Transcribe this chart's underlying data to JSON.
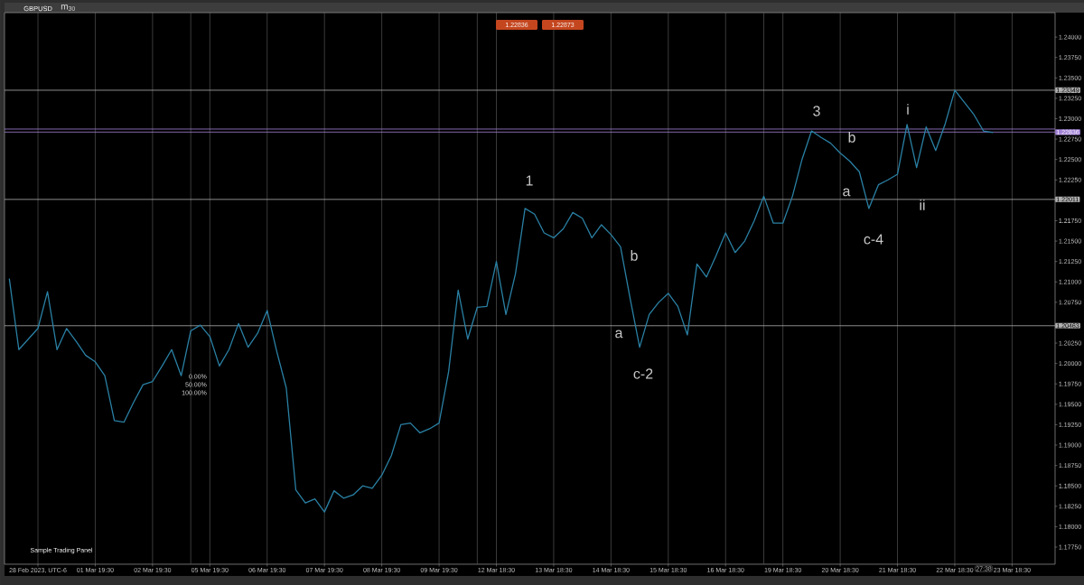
{
  "chart_data": {
    "type": "line",
    "title": "GBPUSD",
    "subtitle": "m$_{30}$",
    "color": "#2a80a4",
    "grid": "x",
    "categories": [
      null,
      null,
      null,
      "28 Feb 2023, UTC-6",
      null,
      null,
      null,
      null,
      null,
      "01 Mar 19:30",
      null,
      null,
      null,
      null,
      null,
      "02 Mar 19:30",
      null,
      null,
      null,
      null,
      null,
      "05 Mar 19:30",
      null,
      null,
      null,
      null,
      null,
      "06 Mar 19:30",
      null,
      null,
      null,
      null,
      null,
      "07 Mar 19:30",
      null,
      null,
      null,
      null,
      null,
      "08 Mar 19:30",
      null,
      null,
      null,
      null,
      null,
      "09 Mar 19:30",
      null,
      null,
      null,
      null,
      null,
      "12 Mar 18:30",
      null,
      null,
      null,
      null,
      null,
      "13 Mar 18:30",
      null,
      null,
      null,
      null,
      null,
      "14 Mar 18:30",
      null,
      null,
      null,
      null,
      null,
      "15 Mar 18:30",
      null,
      null,
      null,
      null,
      null,
      "16 Mar 18:30",
      null,
      null,
      null,
      null,
      null,
      "19 Mar 18:30",
      null,
      null,
      null,
      null,
      null,
      "20 Mar 18:30",
      null,
      null,
      null,
      null,
      null,
      "21 Mar 18:30",
      null,
      null,
      null,
      null,
      null,
      "22 Mar 18:30",
      null,
      null,
      null,
      null,
      null,
      "23 Mar 18:30",
      null,
      null,
      null,
      null
    ],
    "ylim": [
      1.1754,
      1.243
    ],
    "yticks": [
      {
        "value": 1.1775,
        "label": "1.17750"
      },
      {
        "value": 1.18,
        "label": "1.18000"
      },
      {
        "value": 1.1825,
        "label": "1.18250"
      },
      {
        "value": 1.185,
        "label": "1.18500"
      },
      {
        "value": 1.1875,
        "label": "1.18750"
      },
      {
        "value": 1.19,
        "label": "1.19000"
      },
      {
        "value": 1.1925,
        "label": "1.19250"
      },
      {
        "value": 1.195,
        "label": "1.19500"
      },
      {
        "value": 1.1975,
        "label": "1.19750"
      },
      {
        "value": 1.2,
        "label": "1.20000"
      },
      {
        "value": 1.2025,
        "label": "1.20250"
      },
      {
        "value": 1.2075,
        "label": "1.20750"
      },
      {
        "value": 1.21,
        "label": "1.21000"
      },
      {
        "value": 1.2125,
        "label": "1.21250"
      },
      {
        "value": 1.215,
        "label": "1.21500"
      },
      {
        "value": 1.2175,
        "label": "1.21750"
      },
      {
        "value": 1.2225,
        "label": "1.22250"
      },
      {
        "value": 1.225,
        "label": "1.22500"
      },
      {
        "value": 1.2275,
        "label": "1.22750"
      },
      {
        "value": 1.23,
        "label": "1.23000"
      },
      {
        "value": 1.2325,
        "label": "1.23250"
      },
      {
        "value": 1.235,
        "label": "1.23500"
      },
      {
        "value": 1.2375,
        "label": "1.23750"
      },
      {
        "value": 1.24,
        "label": "1.24000"
      }
    ],
    "values": [
      1.2104,
      1.2017,
      1.203,
      1.2043,
      1.2088,
      1.2017,
      1.2043,
      1.2027,
      1.201,
      1.2002,
      1.1985,
      1.193,
      1.1928,
      1.1952,
      1.1974,
      1.1978,
      1.1997,
      1.2017,
      1.1985,
      1.204,
      1.2047,
      1.2033,
      1.1997,
      1.2017,
      1.2049,
      1.202,
      1.2037,
      1.2065,
      1.2015,
      1.197,
      1.1845,
      1.1829,
      1.1834,
      1.1818,
      1.1844,
      1.1835,
      1.1839,
      1.185,
      1.1847,
      1.1863,
      1.1887,
      1.1925,
      1.1927,
      1.1915,
      1.192,
      1.1927,
      1.199,
      1.209,
      1.203,
      1.2069,
      1.207,
      1.2125,
      1.206,
      1.211,
      1.219,
      1.2183,
      1.216,
      1.2154,
      1.2165,
      1.2185,
      1.2178,
      1.2154,
      1.217,
      1.2158,
      1.2143,
      1.208,
      1.202,
      1.206,
      1.2075,
      1.2086,
      1.207,
      1.2035,
      1.2122,
      1.2106,
      1.2132,
      1.216,
      1.2136,
      1.215,
      1.2175,
      1.2205,
      1.2172,
      1.2172,
      1.2205,
      1.225,
      1.2285,
      1.2277,
      1.227,
      1.2258,
      1.2248,
      1.2235,
      1.219,
      1.2219,
      1.2225,
      1.2232,
      1.2293,
      1.224,
      1.229,
      1.2261,
      1.2294,
      1.2335,
      1.232,
      1.2305,
      1.2285,
      1.2283,
      null,
      null,
      null,
      null,
      null,
      null
    ],
    "ref_lines": [
      {
        "axis": "y",
        "value": 1.23349,
        "label": "1.23349",
        "color": "#b0b0b0"
      },
      {
        "axis": "y",
        "value": 1.22873,
        "color": "#a383d8"
      },
      {
        "axis": "y",
        "value": 1.22836,
        "label": "1.22836",
        "color": "#a383d8"
      },
      {
        "axis": "y",
        "value": 1.22011,
        "label": "1.22011",
        "color": "#b0b0b0"
      },
      {
        "axis": "y",
        "value": 1.20463,
        "label": "1.20463",
        "color": "#b0b0b0"
      }
    ],
    "annotations": [
      "1.22836",
      "1.22873",
      "Sample Trading Panel",
      "27:38",
      "1",
      "b",
      "a",
      "c-2",
      "3",
      "b",
      "a",
      "c-4",
      "i",
      "ii",
      "0.00%",
      "50.00%",
      "100.00%"
    ]
  }
}
